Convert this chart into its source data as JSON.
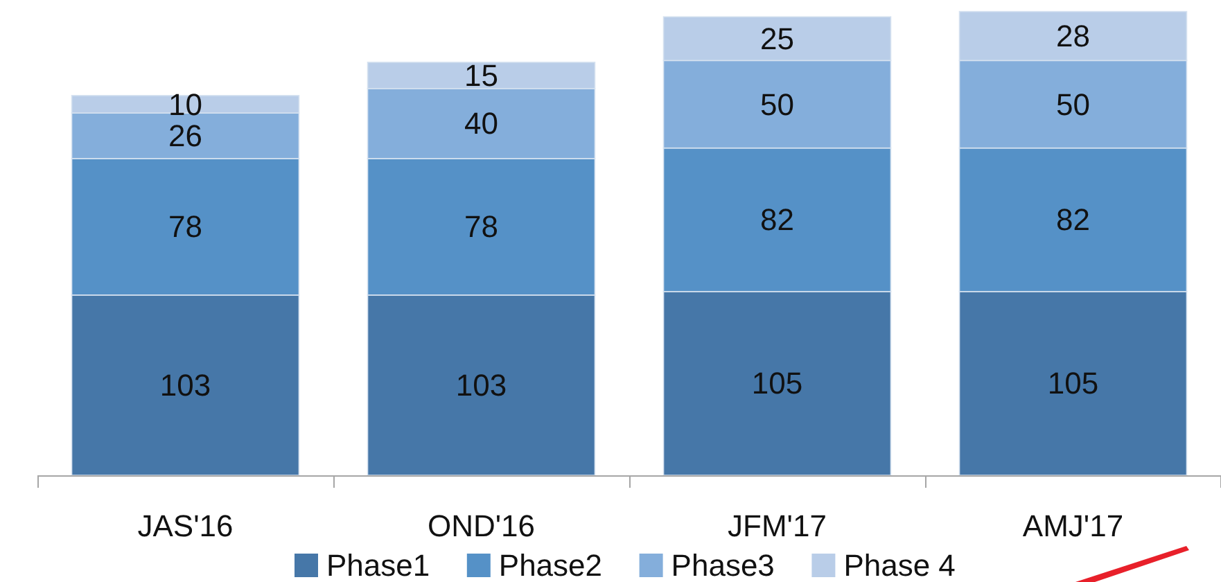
{
  "chart_data": {
    "type": "bar",
    "stacked": true,
    "categories": [
      "JAS'16",
      "OND'16",
      "JFM'17",
      "AMJ'17"
    ],
    "series": [
      {
        "name": "Phase1",
        "color": "#4677a8",
        "values": [
          103,
          103,
          105,
          105
        ]
      },
      {
        "name": "Phase2",
        "color": "#5591c7",
        "values": [
          78,
          78,
          82,
          82
        ]
      },
      {
        "name": "Phase3",
        "color": "#84aedb",
        "values": [
          26,
          40,
          50,
          50
        ]
      },
      {
        "name": "Phase 4",
        "color": "#b9cde8",
        "values": [
          10,
          15,
          25,
          28
        ]
      }
    ],
    "ylim": [
      0,
      270
    ],
    "tick_labels": "x",
    "data_labels": true,
    "legend": "bottom"
  }
}
